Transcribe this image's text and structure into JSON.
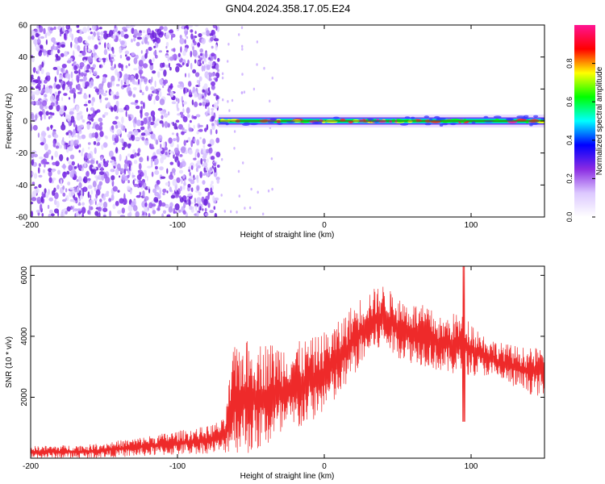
{
  "title": "GN04.2024.358.17.05.E24",
  "chart_data": [
    {
      "type": "heatmap",
      "xlabel": "Height of straight line (km)",
      "ylabel": "Frequency (Hz)",
      "xlim": [
        -200,
        150
      ],
      "ylim": [
        -60,
        60
      ],
      "x_ticks": [
        -200,
        -100,
        0,
        100
      ],
      "y_ticks": [
        -60,
        -40,
        -20,
        0,
        20,
        40,
        60
      ],
      "colorbar": {
        "label": "Normalized spectral amplitude",
        "range": [
          0,
          1
        ],
        "ticks": [
          "0.0",
          "0.2",
          "0.4",
          "0.6",
          "0.8"
        ]
      },
      "features": {
        "noise_region_x": [
          -200,
          -72
        ],
        "signal_line_x": [
          -72,
          150
        ],
        "signal_frequency_hz": 0,
        "scattered_noise_x": [
          -70,
          -35
        ]
      },
      "line_color": "#2e7d32",
      "colormap": [
        "#ffffff",
        "#dcc8ff",
        "#8a2be2",
        "#0000ff",
        "#00ffff",
        "#00ff00",
        "#ffff00",
        "#ff0000",
        "#ff1493"
      ]
    },
    {
      "type": "line",
      "xlabel": "Height of straight line (km)",
      "ylabel": "SNR (10 * v/v)",
      "xlim": [
        -200,
        150
      ],
      "ylim": [
        0,
        6300
      ],
      "x_ticks": [
        -200,
        -100,
        0,
        100
      ],
      "y_ticks": [
        2000,
        4000,
        6000
      ],
      "color": "#ee2a2a",
      "envelope": {
        "x": [
          -200,
          -160,
          -130,
          -100,
          -80,
          -68,
          -62,
          -55,
          -45,
          -35,
          -20,
          -5,
          10,
          20,
          30,
          40,
          50,
          60,
          70,
          80,
          90,
          100,
          110,
          120,
          130,
          140,
          150
        ],
        "upper": [
          400,
          450,
          650,
          900,
          1050,
          1300,
          3600,
          3900,
          3800,
          3800,
          3800,
          4000,
          4500,
          5100,
          5500,
          5700,
          5300,
          5100,
          5000,
          4600,
          4800,
          4500,
          4000,
          3800,
          3700,
          3600,
          3700
        ],
        "lower": [
          0,
          0,
          50,
          100,
          150,
          150,
          200,
          100,
          200,
          400,
          800,
          1300,
          1900,
          2700,
          3300,
          3600,
          3300,
          3100,
          3000,
          2800,
          2700,
          2700,
          2700,
          2500,
          2300,
          2100,
          2000
        ]
      },
      "spike": {
        "x": 95,
        "min": 1200,
        "max": 6300
      }
    }
  ]
}
